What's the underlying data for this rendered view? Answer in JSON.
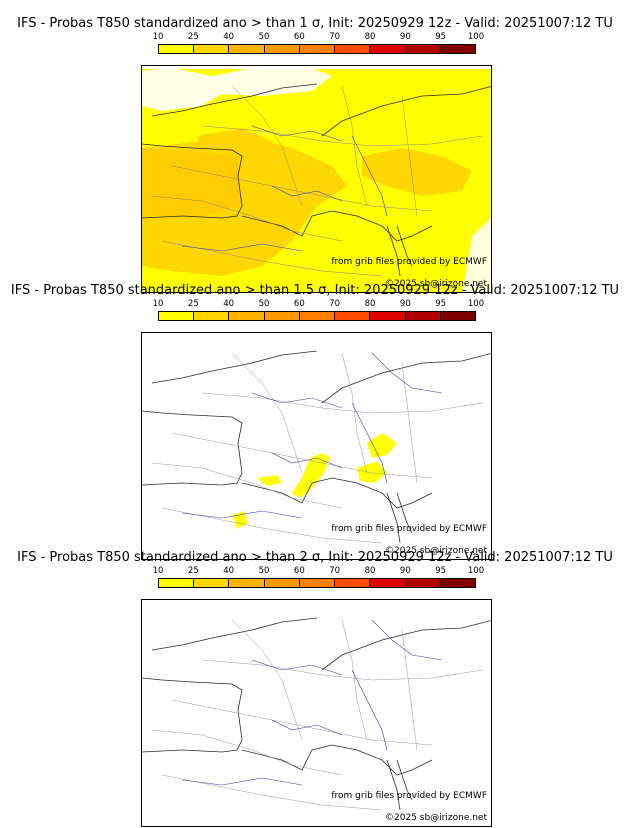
{
  "colorbar": {
    "ticks": [
      "10",
      "25",
      "40",
      "50",
      "60",
      "70",
      "80",
      "90",
      "95",
      "100"
    ],
    "colors": [
      "#ffff00",
      "#ffd700",
      "#ffb300",
      "#ff9900",
      "#ff7f00",
      "#ff4c00",
      "#e00000",
      "#b00000",
      "#800000"
    ]
  },
  "panels": [
    {
      "title": "IFS - Probas T850  standardized ano > than 1 σ, Init: 20250929 12z - Valid: 20251007:12 TU",
      "source_note": "from grib files provided by ECMWF",
      "copyright": "©2025 sb@irizone.net"
    },
    {
      "title": "IFS - Probas T850  standardized ano > than 1.5 σ, Init: 20250929 12z - Valid: 20251007:12 TU",
      "source_note": "from grib files provided by ECMWF",
      "copyright": "©2025 sb@irizone.net"
    },
    {
      "title": "IFS - Probas T850  standardized ano > than 2 σ, Init: 20250929 12z - Valid: 20251007:12 TU",
      "source_note": "from grib files provided by ECMWF",
      "copyright": "©2025 sb@irizone.net"
    }
  ]
}
